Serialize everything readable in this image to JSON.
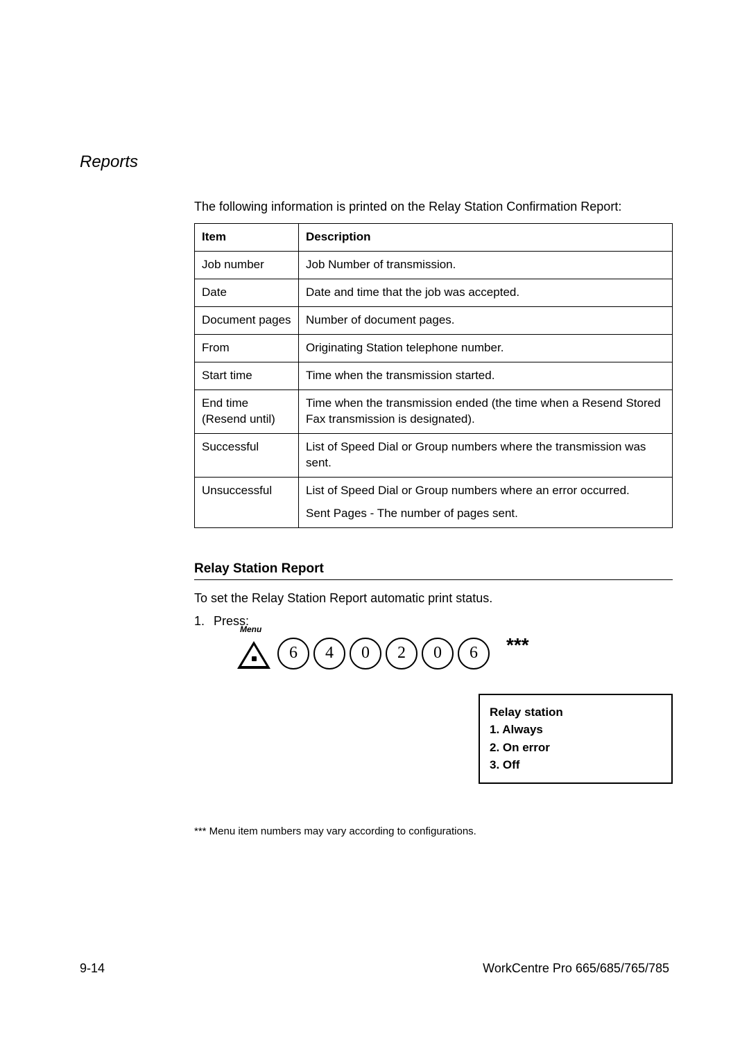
{
  "section_header": "Reports",
  "intro": "The following information is printed on the Relay Station Confirmation Report:",
  "table": {
    "header_item": "Item",
    "header_desc": "Description",
    "rows": [
      {
        "item": "Job number",
        "desc": "Job Number of transmission."
      },
      {
        "item": "Date",
        "desc": "Date and time that the job was accepted."
      },
      {
        "item": "Document pages",
        "desc": "Number of document pages."
      },
      {
        "item": "From",
        "desc": "Originating Station telephone number."
      },
      {
        "item": "Start time",
        "desc": "Time when the transmission started."
      },
      {
        "item": "End time (Resend until)",
        "desc": "Time when the transmission ended (the time when a Resend Stored Fax transmission is designated)."
      },
      {
        "item": "Successful",
        "desc": "List of Speed Dial or Group numbers where the transmission was sent."
      },
      {
        "item": "Unsuccessful",
        "desc": "List of Speed Dial or Group numbers where an error occurred.",
        "desc2": "Sent Pages - The number of pages sent."
      }
    ]
  },
  "subsection_title": "Relay Station Report",
  "subsection_text": "To set the Relay Station Report automatic print status.",
  "step_number": "1.",
  "step_label": "Press:",
  "menu_label": "Menu",
  "buttons": [
    "6",
    "4",
    "0",
    "2",
    "0",
    "6"
  ],
  "stars": "***",
  "display": {
    "title": "Relay station",
    "opt1": "1. Always",
    "opt2": "2. On error",
    "opt3": "3. Off"
  },
  "footnote": "*** Menu item numbers may vary according to configurations.",
  "footer_left": "9-14",
  "footer_right": "WorkCentre Pro 665/685/765/785"
}
